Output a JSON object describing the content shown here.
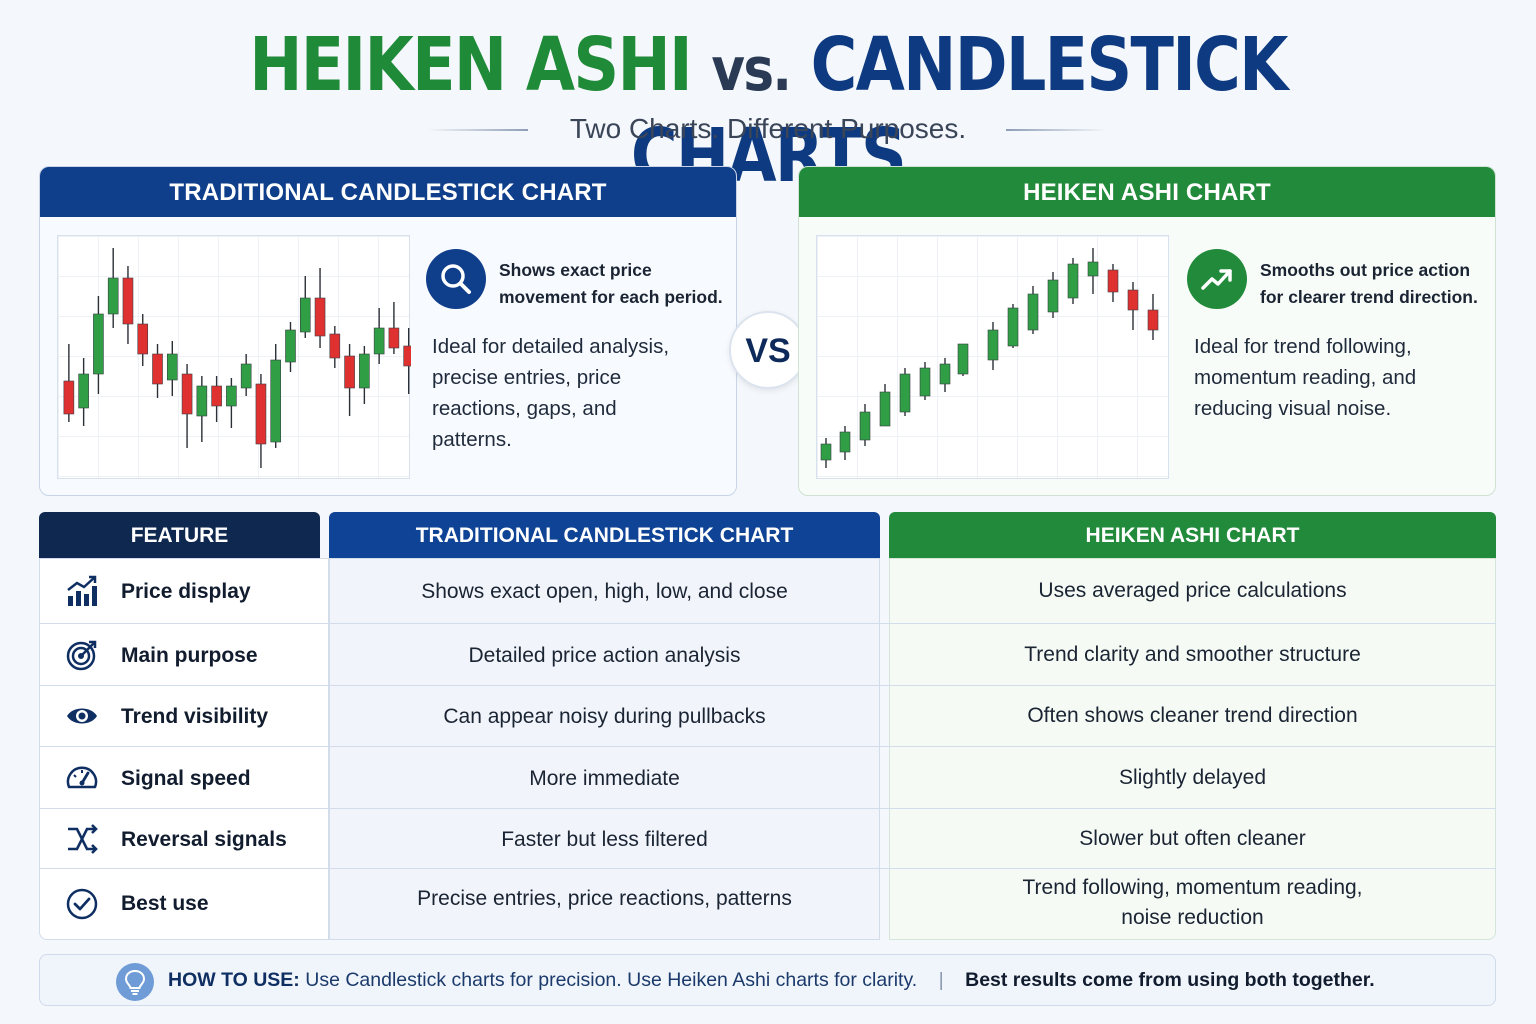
{
  "header": {
    "title_part1": "HEIKEN ASHI",
    "title_vs": "vs.",
    "title_part2": "CANDLESTICK CHARTS",
    "subtitle": "Two Charts. Different Purposes."
  },
  "left_panel": {
    "heading": "TRADITIONAL CANDLESTICK CHART",
    "icon": "magnifier-icon",
    "note_bold_line1": "Shows exact price",
    "note_bold_line2": "movement for each period.",
    "note_line1": "Ideal for detailed analysis,",
    "note_line2": "precise entries, price",
    "note_line3": "reactions, gaps, and",
    "note_line4": "patterns."
  },
  "vs_badge": "VS",
  "right_panel": {
    "heading": "HEIKEN ASHI CHART",
    "icon": "trend-up-arrow-icon",
    "note_bold_line1": "Smooths out price action",
    "note_bold_line2": "for clearer trend direction.",
    "note_line1": "Ideal for trend following,",
    "note_line2": "momentum reading, and",
    "note_line3": "reducing visual noise."
  },
  "colors": {
    "green": "#228a3b",
    "blue": "#0f3e8a",
    "dark_navy": "#0f2850",
    "bull_candle": "#2f9e44",
    "bear_candle": "#e03131"
  },
  "table": {
    "headers": {
      "feature": "FEATURE",
      "candlestick": "TRADITIONAL CANDLESTICK CHART",
      "heiken": "HEIKEN ASHI CHART"
    },
    "rows": [
      {
        "icon": "bar-chart-up-icon",
        "feature": "Price display",
        "candlestick": "Shows exact open, high, low, and close",
        "heiken_line1": "Uses averaged price calculations",
        "heiken_line2": ""
      },
      {
        "icon": "target-icon",
        "feature": "Main purpose",
        "candlestick": "Detailed price action analysis",
        "heiken_line1": "Trend clarity and smoother structure",
        "heiken_line2": ""
      },
      {
        "icon": "eye-icon",
        "feature": "Trend visibility",
        "candlestick": "Can appear noisy during pullbacks",
        "heiken_line1": "Often shows cleaner trend direction",
        "heiken_line2": ""
      },
      {
        "icon": "speedometer-icon",
        "feature": "Signal speed",
        "candlestick": "More immediate",
        "heiken_line1": "Slightly delayed",
        "heiken_line2": ""
      },
      {
        "icon": "shuffle-arrows-icon",
        "feature": "Reversal signals",
        "candlestick": "Faster but less filtered",
        "heiken_line1": "Slower but often cleaner",
        "heiken_line2": ""
      },
      {
        "icon": "check-circle-icon",
        "feature": "Best use",
        "candlestick": "Precise entries, price reactions, patterns",
        "heiken_line1": "Trend following, momentum reading,",
        "heiken_line2": "noise reduction"
      }
    ]
  },
  "footer": {
    "icon": "lightbulb-icon",
    "label": "HOW TO USE:",
    "text": "Use Candlestick charts for precision. Use Heiken Ashi charts for clarity.",
    "separator": "|",
    "emphasis": "Best results come from using both together."
  }
}
